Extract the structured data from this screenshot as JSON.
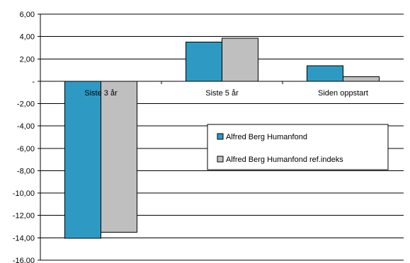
{
  "chart_data": {
    "type": "bar",
    "categories": [
      "Siste 3 år",
      "Siste 5 år",
      "Siden oppstart"
    ],
    "series": [
      {
        "name": "Alfred Berg Humanfond",
        "values": [
          -14.05,
          3.5,
          1.4
        ],
        "color": "#2E9AC4"
      },
      {
        "name": "Alfred Berg Humanfond ref.indeks",
        "values": [
          -13.5,
          3.85,
          0.4
        ],
        "color": "#BFBFBF"
      }
    ],
    "title": "",
    "xlabel": "",
    "ylabel": "",
    "ylim": [
      -16,
      6
    ],
    "y_ticks": [
      6,
      4,
      2,
      0,
      -2,
      -4,
      -6,
      -8,
      -10,
      -12,
      -14,
      -16
    ],
    "y_tick_labels": [
      "6,00",
      "4,00",
      "2,00",
      "-",
      "-2,00",
      "-4,00",
      "-6,00",
      "-8,00",
      "-10,00",
      "-12,00",
      "-14,00",
      "-16,00"
    ],
    "grid": true,
    "legend_position": "center-right"
  }
}
